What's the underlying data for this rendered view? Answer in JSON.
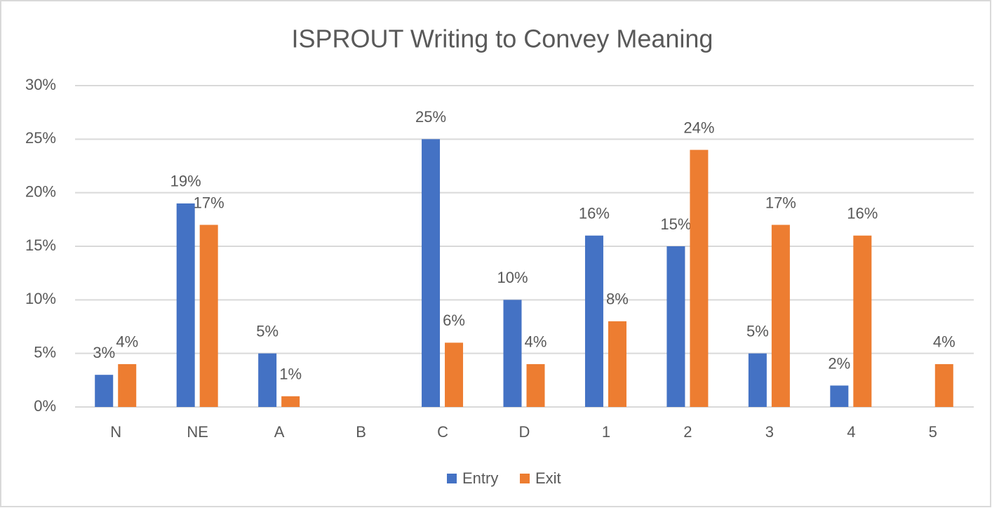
{
  "chart_data": {
    "type": "bar",
    "title": "ISPROUT Writing to Convey Meaning",
    "categories": [
      "N",
      "NE",
      "A",
      "B",
      "C",
      "D",
      "1",
      "2",
      "3",
      "4",
      "5"
    ],
    "series": [
      {
        "name": "Entry",
        "color": "#4472c4",
        "values": [
          3,
          19,
          5,
          null,
          25,
          10,
          16,
          15,
          5,
          2,
          null
        ],
        "value_labels": [
          "3%",
          "19%",
          "5%",
          null,
          "25%",
          "10%",
          "16%",
          "15%",
          "5%",
          "2%",
          null
        ]
      },
      {
        "name": "Exit",
        "color": "#ed7d31",
        "values": [
          4,
          17,
          1,
          null,
          6,
          4,
          8,
          24,
          17,
          16,
          4
        ],
        "value_labels": [
          "4%",
          "17%",
          "1%",
          null,
          "6%",
          "4%",
          "8%",
          "24%",
          "17%",
          "16%",
          "4%"
        ]
      }
    ],
    "ylim": [
      0,
      30
    ],
    "yticks": [
      {
        "value": 0,
        "label": "0%"
      },
      {
        "value": 5,
        "label": "5%"
      },
      {
        "value": 10,
        "label": "10%"
      },
      {
        "value": 15,
        "label": "15%"
      },
      {
        "value": 20,
        "label": "20%"
      },
      {
        "value": 25,
        "label": "25%"
      },
      {
        "value": 30,
        "label": "30%"
      }
    ],
    "grid": true,
    "legend": "bottom"
  }
}
